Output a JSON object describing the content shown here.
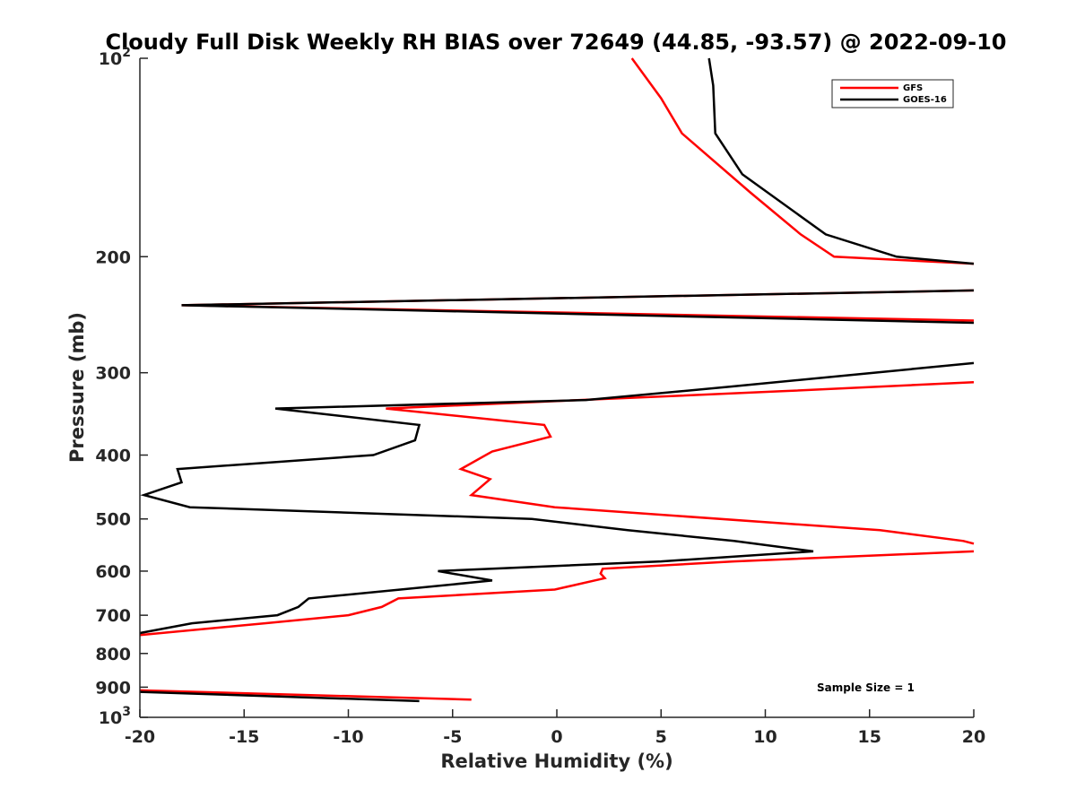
{
  "chart_data": {
    "type": "line",
    "title": "Cloudy Full Disk Weekly RH BIAS over 72649 (44.85, -93.57) @ 2022-09-10",
    "xlabel": "Relative Humidity (%)",
    "ylabel": "Pressure (mb)",
    "xlim": [
      -20,
      20
    ],
    "ylim": [
      100,
      1000
    ],
    "yscale": "log",
    "y_reversed": true,
    "x_ticks": [
      -20,
      -15,
      -10,
      -5,
      0,
      5,
      10,
      15,
      20
    ],
    "x_tick_labels": [
      "-20",
      "-15",
      "-10",
      "-5",
      "0",
      "5",
      "10",
      "15",
      "20"
    ],
    "y_ticks": [
      100,
      200,
      300,
      400,
      500,
      600,
      700,
      800,
      900,
      1000
    ],
    "y_tick_labels": [
      {
        "base": "10",
        "exp": "2"
      },
      {
        "base": "200",
        "exp": ""
      },
      {
        "base": "300",
        "exp": ""
      },
      {
        "base": "400",
        "exp": ""
      },
      {
        "base": "500",
        "exp": ""
      },
      {
        "base": "600",
        "exp": ""
      },
      {
        "base": "700",
        "exp": ""
      },
      {
        "base": "800",
        "exp": ""
      },
      {
        "base": "900",
        "exp": ""
      },
      {
        "base": "10",
        "exp": "3"
      }
    ],
    "grid": false,
    "legend_position": "top-right",
    "annotation": "Sample Size = 1",
    "series": [
      {
        "name": "GFS",
        "color": "#ff0000",
        "segments": [
          [
            [
              3.6,
              100
            ],
            [
              5,
              115
            ],
            [
              6,
              130
            ],
            [
              9.3,
              160
            ],
            [
              11.7,
              185
            ],
            [
              13.3,
              200
            ],
            [
              20,
              205
            ]
          ],
          [
            [
              20,
              225
            ],
            [
              -18,
              237
            ],
            [
              20,
              250
            ]
          ],
          [
            [
              20,
              310
            ],
            [
              10.8,
              320
            ],
            [
              -8.2,
              340
            ],
            [
              -0.6,
              360
            ],
            [
              -0.3,
              375
            ],
            [
              -3.1,
              395
            ],
            [
              -4.6,
              420
            ],
            [
              -3.2,
              435
            ],
            [
              -4.1,
              460
            ],
            [
              -0.1,
              480
            ],
            [
              15.5,
              520
            ],
            [
              19.5,
              540
            ],
            [
              20,
              545
            ]
          ],
          [
            [
              20,
              560
            ],
            [
              8.5,
              580
            ],
            [
              2.2,
              595
            ],
            [
              2.1,
              605
            ],
            [
              2.3,
              615
            ],
            [
              -0.1,
              640
            ],
            [
              -7.6,
              660
            ],
            [
              -8.4,
              680
            ],
            [
              -10,
              700
            ],
            [
              -14,
              720
            ],
            [
              -20,
              750
            ]
          ],
          [
            [
              -20,
              910
            ],
            [
              -4.1,
              940
            ]
          ]
        ]
      },
      {
        "name": "GOES-16",
        "color": "#000000",
        "segments": [
          [
            [
              7.3,
              100
            ],
            [
              7.5,
              110
            ],
            [
              7.6,
              130
            ],
            [
              8.9,
              150
            ],
            [
              12.9,
              185
            ],
            [
              16.3,
              200
            ],
            [
              20,
              205
            ]
          ],
          [
            [
              20,
              225
            ],
            [
              -18,
              237
            ],
            [
              20,
              252
            ]
          ],
          [
            [
              20,
              290
            ],
            [
              15.2,
              300
            ],
            [
              8.3,
              315
            ],
            [
              1.4,
              330
            ],
            [
              -13.5,
              340
            ],
            [
              -6.6,
              360
            ],
            [
              -6.8,
              380
            ],
            [
              -8.8,
              400
            ],
            [
              -18.2,
              420
            ],
            [
              -18,
              440
            ],
            [
              -19.8,
              460
            ],
            [
              -17.6,
              480
            ],
            [
              -1.2,
              500
            ],
            [
              3.4,
              520
            ],
            [
              8.5,
              540
            ],
            [
              12.3,
              560
            ],
            [
              5,
              580
            ],
            [
              -5.7,
              600
            ],
            [
              -3.1,
              620
            ],
            [
              -7.5,
              640
            ],
            [
              -11.9,
              660
            ],
            [
              -12.4,
              680
            ],
            [
              -13.4,
              700
            ],
            [
              -17.5,
              720
            ],
            [
              -20,
              745
            ]
          ],
          [
            [
              -20,
              915
            ],
            [
              -6.6,
              945
            ]
          ]
        ]
      }
    ]
  },
  "legend": {
    "items": [
      {
        "label": "GFS",
        "color": "#ff0000"
      },
      {
        "label": "GOES-16",
        "color": "#000000"
      }
    ]
  }
}
